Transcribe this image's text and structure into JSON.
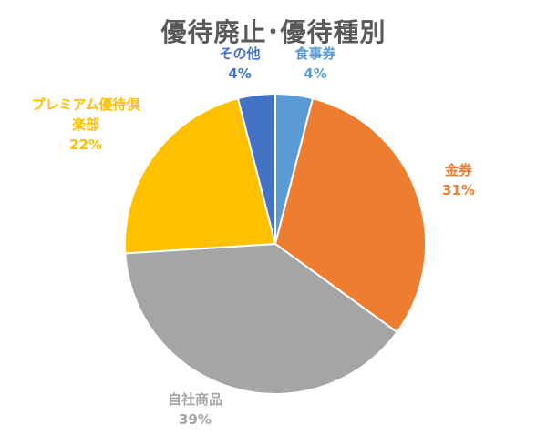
{
  "chart_data": {
    "type": "pie",
    "title": "優待廃止･優待種別",
    "slices": [
      {
        "label": "食事券",
        "pct_label": "4%",
        "value": 4,
        "color": "#5B9BD5"
      },
      {
        "label": "金券",
        "pct_label": "31%",
        "value": 31,
        "color": "#ED7D31"
      },
      {
        "label": "自社商品",
        "pct_label": "39%",
        "value": 39,
        "color": "#A5A5A5"
      },
      {
        "label": "プレミアム優待倶楽部",
        "pct_label": "22%",
        "value": 22,
        "color": "#FFC000"
      },
      {
        "label": "その他",
        "pct_label": "4%",
        "value": 4,
        "color": "#4472C4"
      }
    ],
    "legend": "none"
  }
}
